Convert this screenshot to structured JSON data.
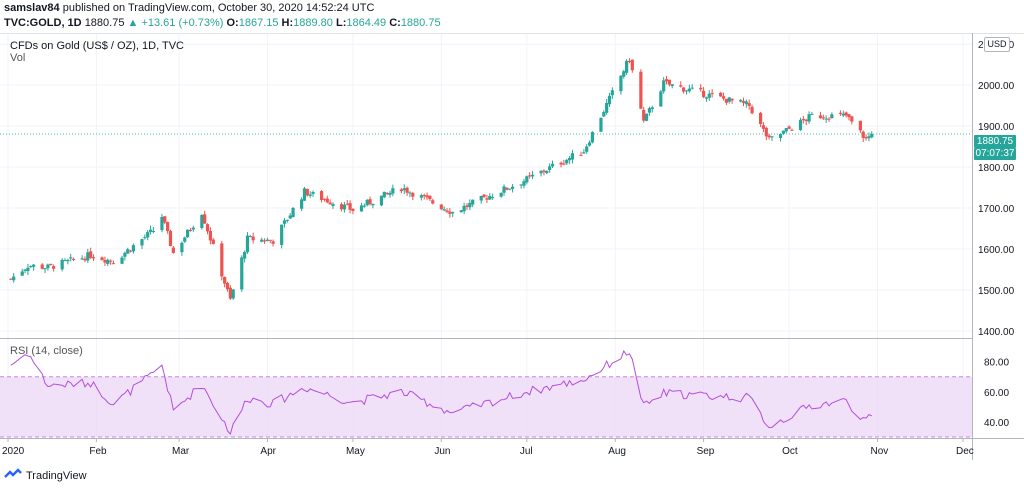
{
  "header": {
    "author": "samslav84",
    "published_text": "published on TradingView.com, October 30, 2020 14:52:24 UTC"
  },
  "quote": {
    "symbol": "TVC:GOLD, 1D",
    "last": "1880.75",
    "change_arrow": "▲",
    "change": "+13.61 (+0.73%)",
    "o_label": "O:",
    "o": "1867.15",
    "h_label": "H:",
    "h": "1889.80",
    "l_label": "L:",
    "l": "1864.49",
    "c_label": "C:",
    "c": "1880.75"
  },
  "chart": {
    "title": "CFDs on Gold (US$ / OZ), 1D, TVC",
    "vol_label": "Vol",
    "currency": "USD",
    "last_price_badge": "1880.75",
    "countdown_badge": "07:07:37",
    "rsi_label": "RSI (14, close)"
  },
  "footer": {
    "brand": "TradingView",
    "logo_icon": "tradingview-logo-icon"
  },
  "colors": {
    "up": "#26a69a",
    "down": "#ef5350",
    "rsi_line": "#b44ed9",
    "rsi_band": "#e9d4f7"
  },
  "chart_data": [
    {
      "type": "candlestick",
      "title": "CFDs on Gold (US$ / OZ), 1D, TVC",
      "ylabel": "USD",
      "y_ticks": [
        1400,
        1500,
        1600,
        1700,
        1800,
        1900,
        2000,
        2100
      ],
      "ylim": [
        1385,
        2125
      ],
      "x_ticks": [
        "2020",
        "Feb",
        "Mar",
        "Apr",
        "May",
        "Jun",
        "Jul",
        "Aug",
        "Sep",
        "Oct",
        "Nov",
        "Dec"
      ],
      "grid": true,
      "close_path": [
        {
          "date": "2020-01-02",
          "close": 1527
        },
        {
          "date": "2020-01-08",
          "close": 1560
        },
        {
          "date": "2020-01-15",
          "close": 1555
        },
        {
          "date": "2020-01-30",
          "close": 1585
        },
        {
          "date": "2020-02-07",
          "close": 1570
        },
        {
          "date": "2020-02-21",
          "close": 1645
        },
        {
          "date": "2020-02-24",
          "close": 1680
        },
        {
          "date": "2020-02-28",
          "close": 1590
        },
        {
          "date": "2020-03-09",
          "close": 1690
        },
        {
          "date": "2020-03-19",
          "close": 1475
        },
        {
          "date": "2020-03-25",
          "close": 1625
        },
        {
          "date": "2020-04-03",
          "close": 1620
        },
        {
          "date": "2020-04-14",
          "close": 1740
        },
        {
          "date": "2020-05-01",
          "close": 1695
        },
        {
          "date": "2020-05-18",
          "close": 1750
        },
        {
          "date": "2020-06-05",
          "close": 1690
        },
        {
          "date": "2020-07-01",
          "close": 1770
        },
        {
          "date": "2020-07-21",
          "close": 1840
        },
        {
          "date": "2020-08-06",
          "close": 2065
        },
        {
          "date": "2020-08-11",
          "close": 1910
        },
        {
          "date": "2020-08-18",
          "close": 2005
        },
        {
          "date": "2020-09-17",
          "close": 1950
        },
        {
          "date": "2020-09-24",
          "close": 1865
        },
        {
          "date": "2020-10-09",
          "close": 1925
        },
        {
          "date": "2020-10-21",
          "close": 1925
        },
        {
          "date": "2020-10-28",
          "close": 1868
        },
        {
          "date": "2020-10-30",
          "close": 1880.75
        }
      ],
      "last_close": 1880.75
    },
    {
      "type": "line",
      "title": "RSI (14, close)",
      "y_ticks": [
        40,
        60,
        80
      ],
      "ylim": [
        30,
        95
      ],
      "band": [
        30,
        70
      ],
      "series": [
        {
          "name": "RSI (14, close)",
          "points": [
            {
              "date": "2020-01-02",
              "value": 78
            },
            {
              "date": "2020-01-08",
              "value": 86
            },
            {
              "date": "2020-01-15",
              "value": 64
            },
            {
              "date": "2020-01-30",
              "value": 66
            },
            {
              "date": "2020-02-07",
              "value": 52
            },
            {
              "date": "2020-02-21",
              "value": 72
            },
            {
              "date": "2020-02-24",
              "value": 78
            },
            {
              "date": "2020-02-28",
              "value": 47
            },
            {
              "date": "2020-03-09",
              "value": 65
            },
            {
              "date": "2020-03-19",
              "value": 33
            },
            {
              "date": "2020-03-25",
              "value": 56
            },
            {
              "date": "2020-04-03",
              "value": 52
            },
            {
              "date": "2020-04-14",
              "value": 63
            },
            {
              "date": "2020-05-01",
              "value": 53
            },
            {
              "date": "2020-05-18",
              "value": 60
            },
            {
              "date": "2020-06-05",
              "value": 46
            },
            {
              "date": "2020-07-01",
              "value": 60
            },
            {
              "date": "2020-07-21",
              "value": 68
            },
            {
              "date": "2020-08-06",
              "value": 87
            },
            {
              "date": "2020-08-11",
              "value": 50
            },
            {
              "date": "2020-08-18",
              "value": 59
            },
            {
              "date": "2020-09-17",
              "value": 56
            },
            {
              "date": "2020-09-24",
              "value": 37
            },
            {
              "date": "2020-10-09",
              "value": 51
            },
            {
              "date": "2020-10-21",
              "value": 54
            },
            {
              "date": "2020-10-28",
              "value": 40
            },
            {
              "date": "2020-10-30",
              "value": 44
            }
          ]
        }
      ]
    }
  ]
}
